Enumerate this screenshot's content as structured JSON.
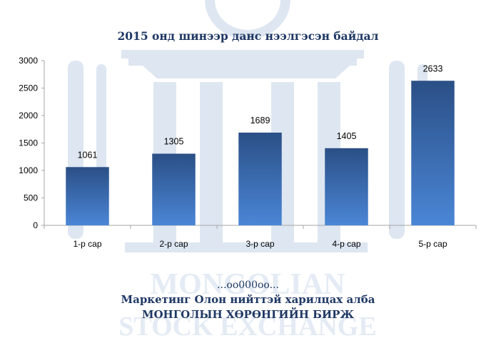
{
  "colors": {
    "bar_top": "#2b4f86",
    "bar_bottom": "#4a86d6",
    "title": "#1f3864",
    "watermark": "#dde6f1",
    "axis_text": "#000000"
  },
  "watermark": {
    "line1": "MONGOLIAN",
    "line2": "STOCK EXCHANGE"
  },
  "chart_data": {
    "type": "bar",
    "title": "2015 онд шинээр данс нээлгэсэн байдал",
    "categories": [
      "1-р сар",
      "2-р сар",
      "3-р сар",
      "4-р сар",
      "5-р сар"
    ],
    "values": [
      1061,
      1305,
      1689,
      1405,
      2633
    ],
    "ylim": [
      0,
      3000
    ],
    "yticks": [
      0,
      500,
      1000,
      1500,
      2000,
      2500,
      3000
    ],
    "xlabel": "",
    "ylabel": "",
    "grid": false,
    "legend": "none"
  },
  "footer": {
    "dots": "...oo000oo...",
    "department": "Маркетинг Олон нийттэй харилцах алба",
    "organization": "МОНГОЛЫН ХӨРӨНГИЙН БИРЖ"
  }
}
